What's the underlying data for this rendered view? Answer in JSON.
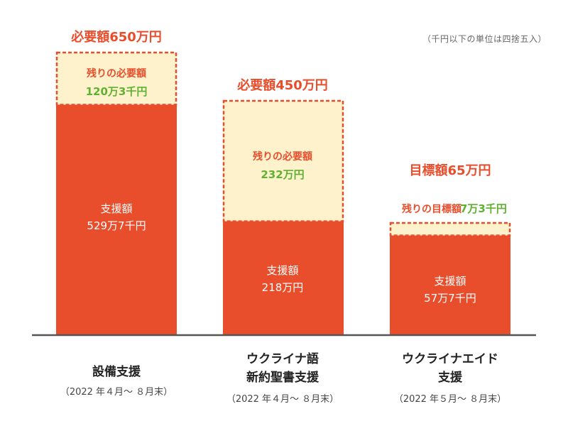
{
  "note": "（千円以下の単位は四捨五入）",
  "colors": {
    "support": "#e84e2c",
    "remaining": "#fdf2cc",
    "outline": "#e84e2c",
    "target_text": "#e84e2c",
    "remaining_value_text": "#5fb130",
    "baseline": "#555555"
  },
  "bars": [
    {
      "target_label": "必要額650万円",
      "remaining_label": "残りの必要額",
      "remaining_value": "120万3千円",
      "support_label": "支援額",
      "support_value": "529万7千円",
      "category_line1": "設備支援",
      "category_line2": "",
      "period": "（2022 年４月～ ８月末）"
    },
    {
      "target_label": "必要額450万円",
      "remaining_label": "残りの必要額",
      "remaining_value": "232万円",
      "support_label": "支援額",
      "support_value": "218万円",
      "category_line1": "ウクライナ語",
      "category_line2": "新約聖書支援",
      "period": "（2022 年４月～ ８月末）"
    },
    {
      "target_label": "目標額65万円",
      "remaining_label": "残りの目標額",
      "remaining_value": "7万3千円",
      "support_label": "支援額",
      "support_value": "57万7千円",
      "category_line1": "ウクライナエイド",
      "category_line2": "支援",
      "period": "（2022 年５月～ ８月末）"
    }
  ],
  "chart_data": {
    "type": "bar",
    "stacked": true,
    "categories": [
      "設備支援",
      "ウクライナ語新約聖書支援",
      "ウクライナエイド支援"
    ],
    "series": [
      {
        "name": "支援額",
        "values": [
          529.7,
          218,
          57.7
        ]
      },
      {
        "name": "残りの必要額",
        "values": [
          120.3,
          232,
          7.3
        ]
      }
    ],
    "totals": [
      650,
      450,
      65
    ],
    "unit": "万円"
  }
}
